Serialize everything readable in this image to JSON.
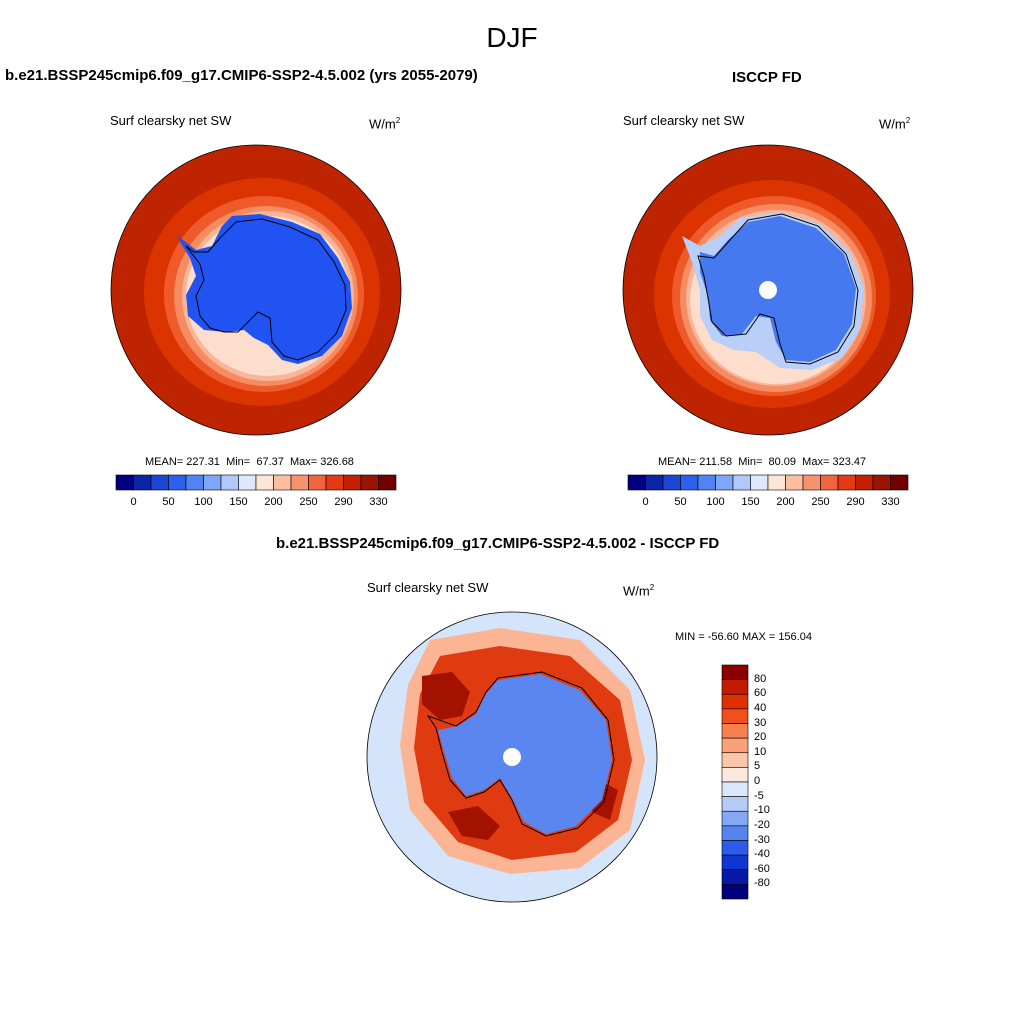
{
  "figure": {
    "title": "DJF"
  },
  "panels": {
    "model": {
      "title": "b.e21.BSSP245cmip6.f09_g17.CMIP6-SSP2-4.5.002 (yrs 2055-2079)",
      "variable": "Surf clearsky net SW",
      "units_base": "W/m",
      "units_exp": "2",
      "mean_label": "MEAN=",
      "mean": "227.31",
      "min_label": "Min=",
      "min": "67.37",
      "max_label": "Max=",
      "max": "326.68"
    },
    "obs": {
      "title": "ISCCP FD",
      "variable": "Surf clearsky net SW",
      "units_base": "W/m",
      "units_exp": "2",
      "mean_label": "MEAN=",
      "mean": "211.58",
      "min_label": "Min=",
      "min": "80.09",
      "max_label": "Max=",
      "max": "323.47"
    },
    "diff": {
      "title": "b.e21.BSSP245cmip6.f09_g17.CMIP6-SSP2-4.5.002 - ISCCP FD",
      "variable": "Surf clearsky net SW",
      "units_base": "W/m",
      "units_exp": "2",
      "minmax": "MIN = -56.60 MAX = 156.04"
    }
  },
  "colorbar_abs": {
    "tick_labels": [
      "0",
      "50",
      "100",
      "150",
      "200",
      "250",
      "290",
      "330"
    ],
    "colors": [
      "#00007f",
      "#0a25a8",
      "#1b46d6",
      "#2e60ef",
      "#5084f5",
      "#7ea6f9",
      "#b0c8fb",
      "#dde8fc",
      "#fde4d4",
      "#fbbfa0",
      "#f7926e",
      "#f0653f",
      "#e23a13",
      "#c22105",
      "#9a1402",
      "#730000"
    ]
  },
  "colorbar_diff": {
    "tick_labels": [
      "80",
      "60",
      "40",
      "30",
      "20",
      "10",
      "5",
      "0",
      "-5",
      "-10",
      "-20",
      "-30",
      "-40",
      "-60",
      "-80"
    ],
    "colors": [
      "#8a0000",
      "#c21b00",
      "#e03000",
      "#f24f1e",
      "#f7804f",
      "#f9a27a",
      "#fcc7a8",
      "#fde9dc",
      "#dbe8fb",
      "#b4cdf8",
      "#84a8f4",
      "#5583f0",
      "#2c5ceb",
      "#0f35d2",
      "#0619a8",
      "#00007f"
    ]
  },
  "map_colors": {
    "abs_outer": "#bf2400",
    "abs_ring2": "#dc3400",
    "abs_ring3": "#ee5a2a",
    "abs_ring4": "#f58c62",
    "abs_ring5": "#f9b597",
    "abs_ring6": "#fdddcc",
    "abs_light_blue": "#b9cff8",
    "abs_ice_model": "#2153f3",
    "abs_ice_obs": "#4678f0",
    "diff_ocean": "#d4e4fb",
    "diff_ice": "#5b86ef",
    "diff_red": "#e03a10",
    "diff_darkred": "#a31200",
    "diff_pink": "#fbb595",
    "coast": "#000000"
  }
}
